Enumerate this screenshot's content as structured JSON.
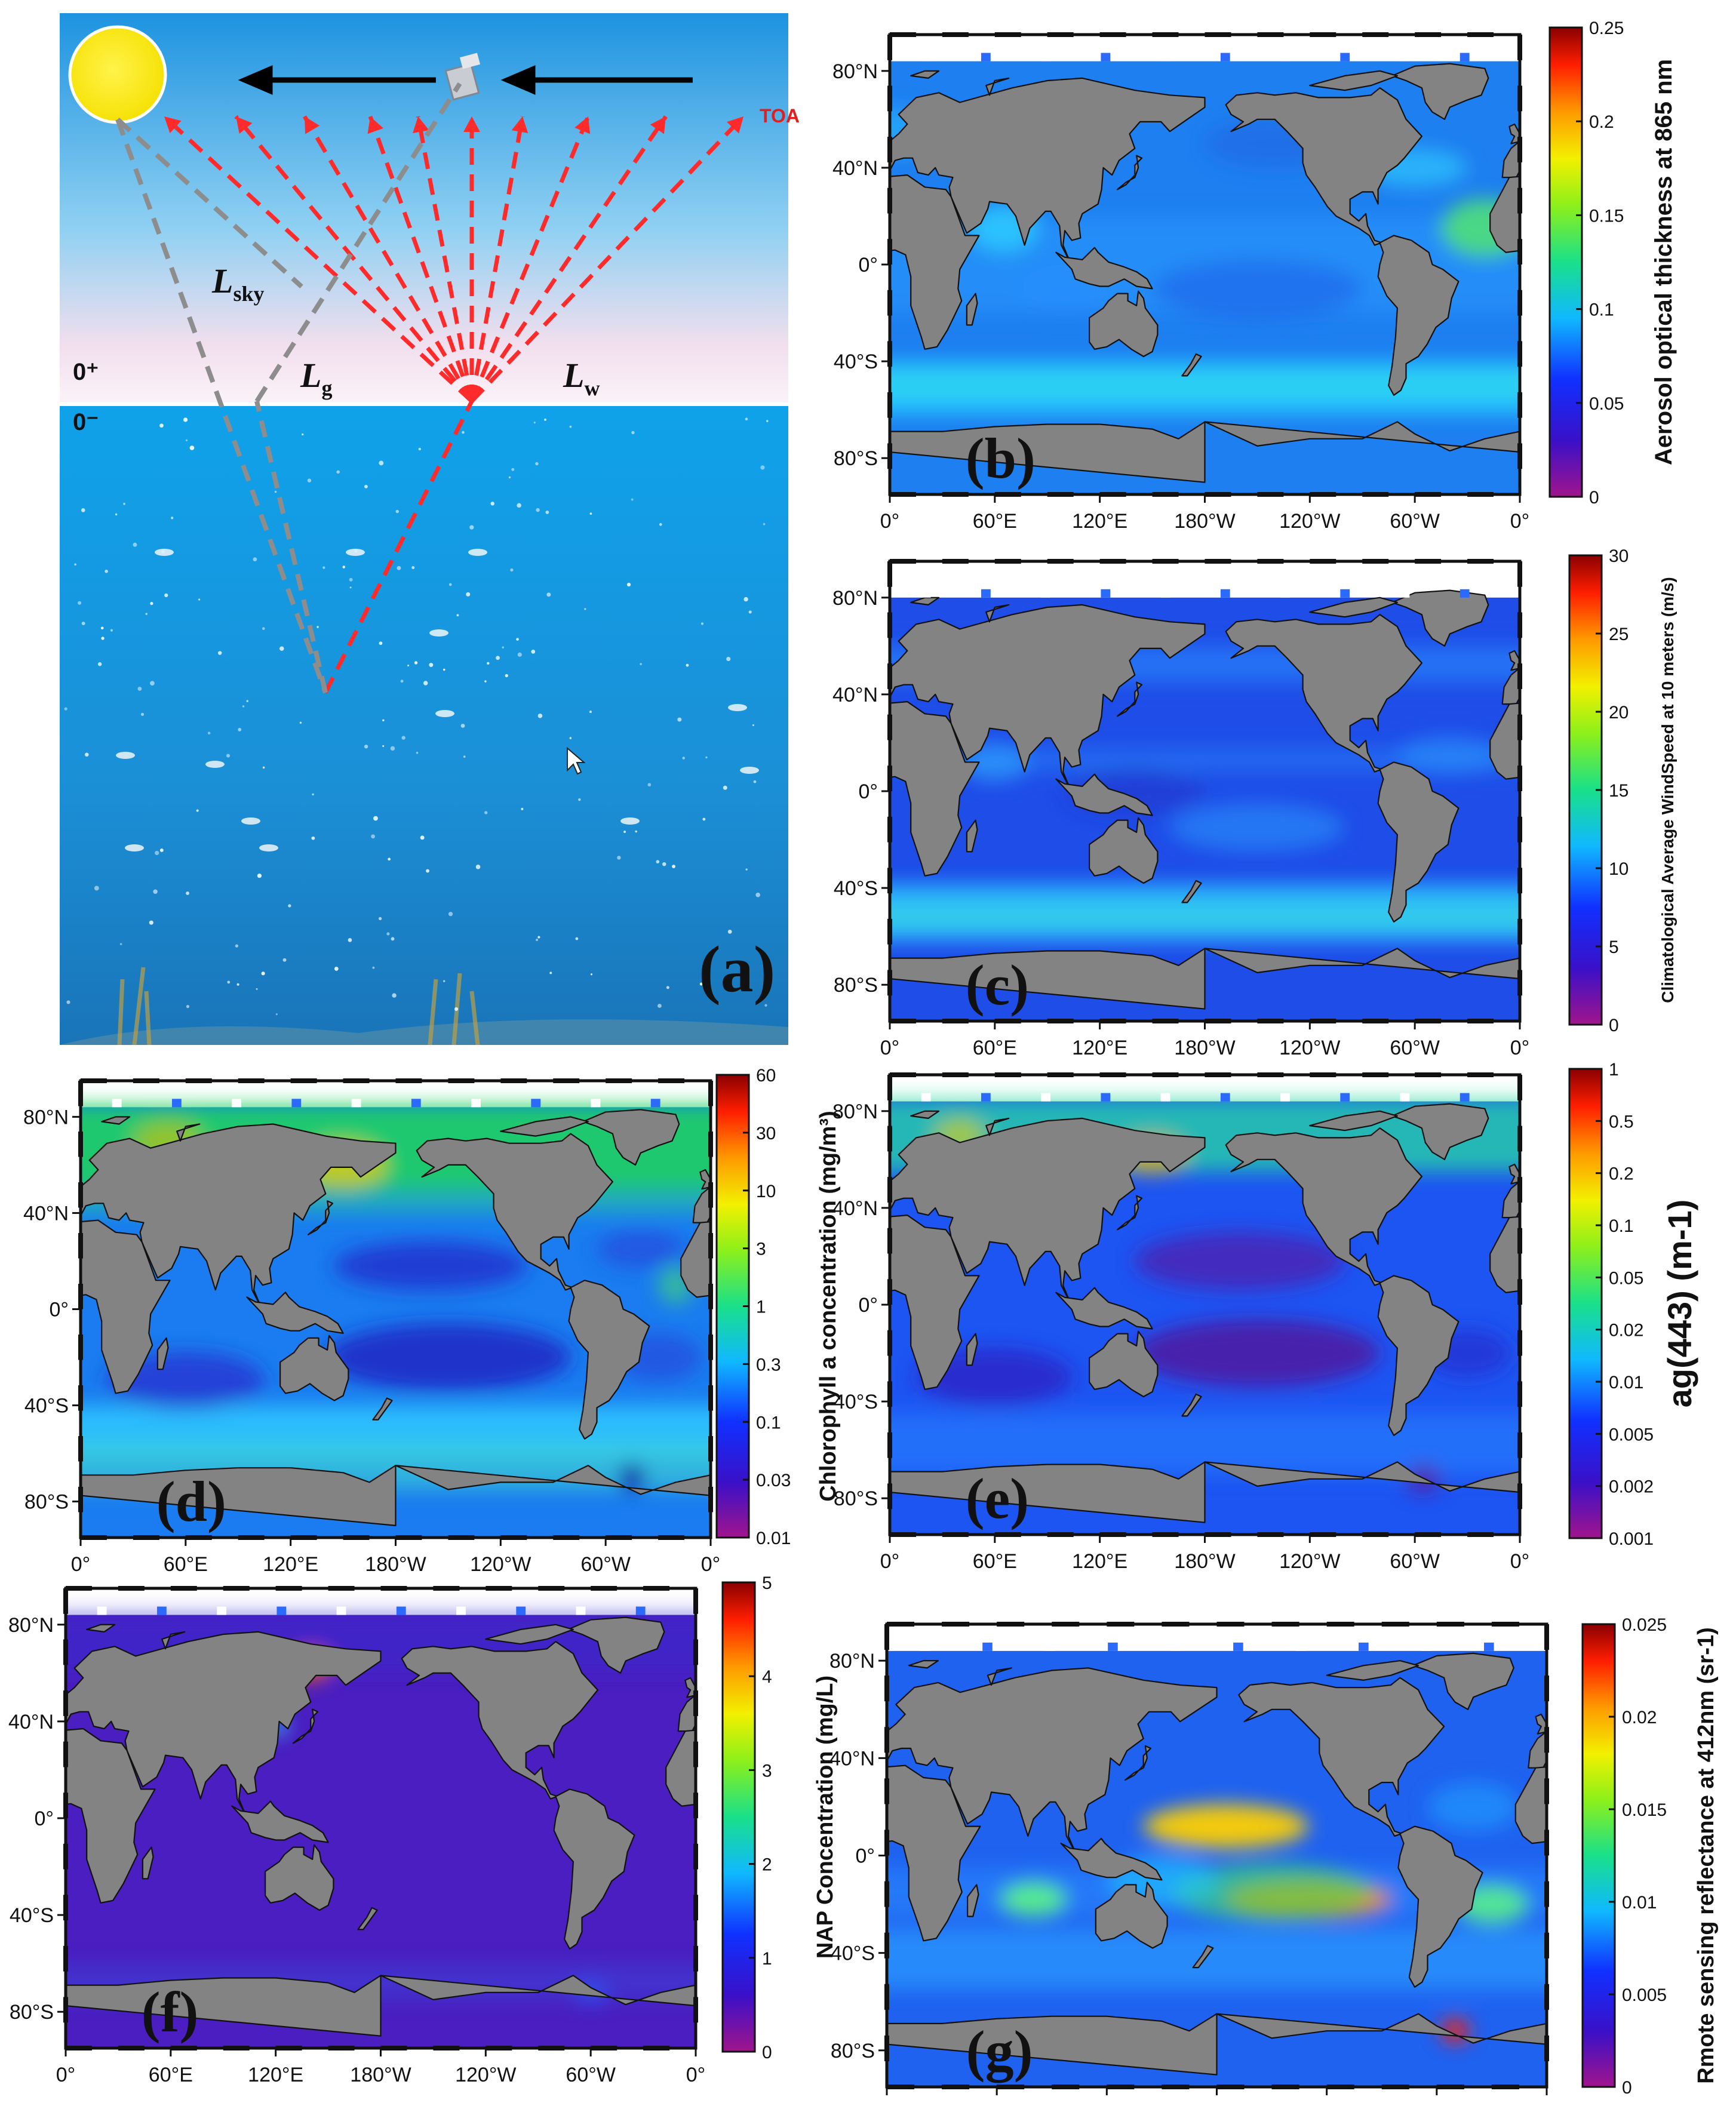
{
  "panel_a": {
    "label": "(a)",
    "toa": "TOA",
    "l_sky": {
      "base": "L",
      "sub": "sky"
    },
    "l_g": {
      "base": "L",
      "sub": "g"
    },
    "l_w": {
      "base": "L",
      "sub": "w"
    },
    "surface_above": "0⁺",
    "surface_below": "0⁻"
  },
  "common_axes": {
    "x_ticks": [
      "0°",
      "60°E",
      "120°E",
      "180°W",
      "120°W",
      "60°W",
      "0°"
    ],
    "y_ticks": [
      "80°N",
      "40°N",
      "0°",
      "40°S",
      "80°S"
    ]
  },
  "maps": [
    {
      "id": "b",
      "label": "(b)",
      "colorbar_title": "Aerosol optical thickness at 865 nm",
      "colorbar_ticks": [
        "0.25",
        "0.2",
        "0.15",
        "0.1",
        "0.05",
        "0"
      ],
      "scale": "linear",
      "palette": "jet",
      "pattern": "aerosol"
    },
    {
      "id": "c",
      "label": "(c)",
      "colorbar_title": "Climatological Average WindSpeed at 10 meters (m/s)",
      "colorbar_ticks": [
        "30",
        "25",
        "20",
        "15",
        "10",
        "5",
        "0"
      ],
      "scale": "linear",
      "palette": "jet",
      "pattern": "wind"
    },
    {
      "id": "d",
      "label": "(d)",
      "colorbar_title": "Chlorophyll a concentration (mg/m³)",
      "colorbar_ticks": [
        "60",
        "30",
        "10",
        "3",
        "1",
        "0.3",
        "0.1",
        "0.03",
        "0.01"
      ],
      "scale": "log",
      "palette": "jet",
      "pattern": "chl"
    },
    {
      "id": "e",
      "label": "(e)",
      "colorbar_title": "ag(443) (m-1)",
      "colorbar_ticks": [
        "1",
        "0.5",
        "0.2",
        "0.1",
        "0.05",
        "0.02",
        "0.01",
        "0.005",
        "0.002",
        "0.001"
      ],
      "scale": "log",
      "palette": "jet",
      "pattern": "cdom"
    },
    {
      "id": "f",
      "label": "(f)",
      "colorbar_title": "NAP Concentration (mg/L)",
      "colorbar_ticks": [
        "5",
        "4",
        "3",
        "2",
        "1",
        "0"
      ],
      "scale": "linear",
      "palette": "jet",
      "pattern": "nap"
    },
    {
      "id": "g",
      "label": "(g)",
      "colorbar_title": "Rmote sensing reflectance at 412nm (sr-1)",
      "colorbar_ticks": [
        "0.025",
        "0.02",
        "0.015",
        "0.01",
        "0.005",
        "0"
      ],
      "scale": "linear",
      "palette": "jet",
      "pattern": "rrs"
    }
  ],
  "colors": {
    "land": "#828282",
    "ocean_low": "#1f3fd8",
    "ocean_mid": "#35a9ff",
    "ocean_high": "#ff3b1a",
    "sky_top": "#2d9fe6",
    "water": "#22a5e6",
    "ray_red": "#ff2a2a",
    "ray_gray": "#8a8a8a"
  }
}
